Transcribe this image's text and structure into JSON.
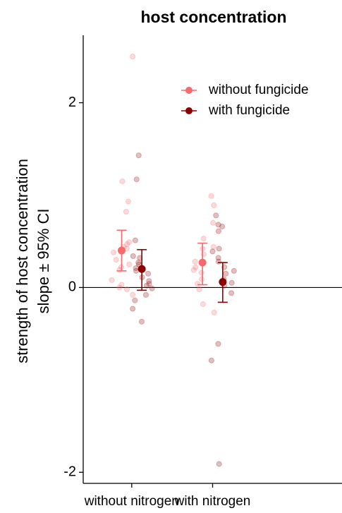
{
  "chart_data": {
    "type": "errorbar",
    "title": "host concentration",
    "y_label": [
      "strength of host concentration",
      "slope ± 95% CI"
    ],
    "categories": [
      "without nitrogen",
      "with nitrogen"
    ],
    "ylim": [
      -2.12,
      2.73
    ],
    "yticks": [
      -2,
      0,
      2
    ],
    "hline": 0,
    "legend": "top-right",
    "series": [
      {
        "name": "without fungicide",
        "color": "#f8696b",
        "values": [
          0.4,
          0.27
        ],
        "lower": [
          0.18,
          0.03
        ],
        "upper": [
          0.62,
          0.48
        ],
        "points": [
          [
            2.5,
            1.15,
            0.93,
            0.82,
            0.47,
            0.49,
            0.44,
            0.38,
            0.3,
            0.22,
            0.19,
            0.08,
            0.03,
            0.0,
            -0.02,
            -0.08,
            0.42,
            0.25
          ],
          [
            0.99,
            0.89,
            0.7,
            0.53,
            0.44,
            0.42,
            0.36,
            0.28,
            0.22,
            0.19,
            0.16,
            0.09,
            0.04,
            -0.02,
            -0.18,
            -0.27
          ]
        ]
      },
      {
        "name": "with fungicide",
        "color": "#8b0000",
        "values": [
          0.2,
          0.06
        ],
        "lower": [
          -0.03,
          -0.16
        ],
        "upper": [
          0.41,
          0.27
        ],
        "points": [
          [
            1.43,
            1.17,
            0.51,
            0.34,
            0.32,
            0.25,
            0.21,
            0.18,
            0.15,
            0.11,
            0.07,
            0.04,
            0.02,
            -0.01,
            -0.08,
            -0.14,
            -0.23,
            -0.37,
            0.27
          ],
          [
            0.78,
            0.68,
            0.66,
            0.61,
            0.42,
            0.39,
            0.32,
            0.28,
            0.22,
            0.18,
            0.15,
            0.09,
            0.05,
            0.02,
            -0.06,
            -0.61,
            -0.79,
            -1.91
          ]
        ]
      }
    ]
  }
}
